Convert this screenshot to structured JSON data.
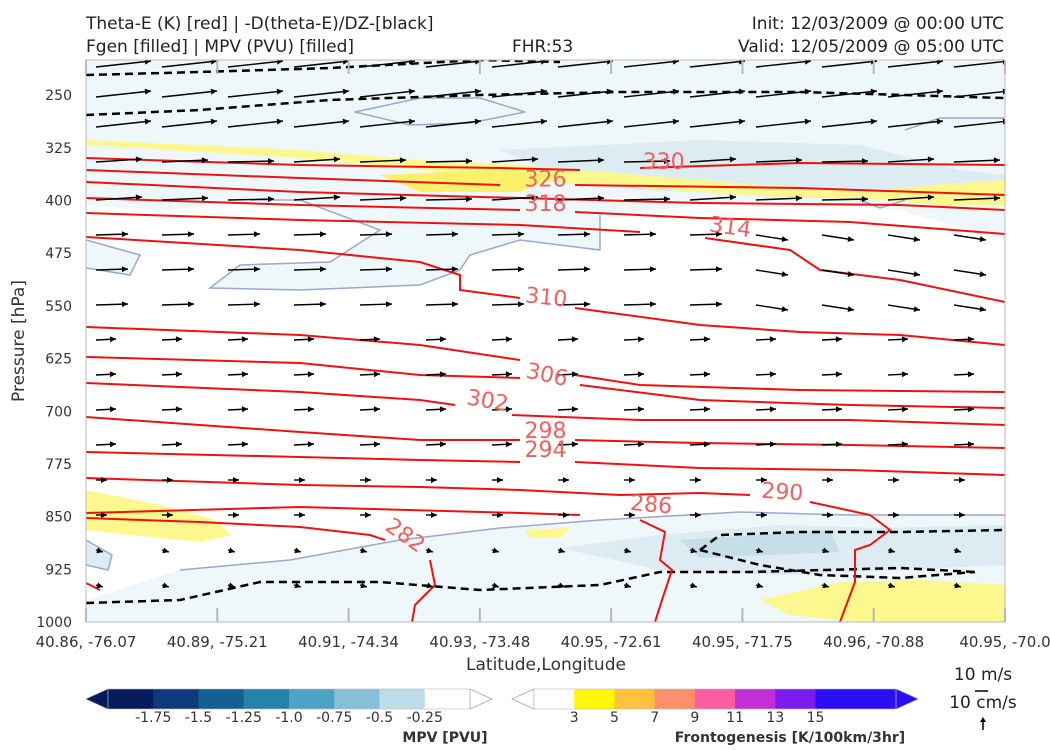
{
  "header": {
    "title_line1": "Theta-E (K) [red] | -D(theta-E)/DZ-[black]",
    "title_line2": "Fgen [filled] | MPV (PVU) [filled]",
    "fhr": "FHR:53",
    "init": "Init: 12/03/2009 @ 00:00 UTC",
    "valid": "Valid: 12/05/2009 @ 05:00 UTC"
  },
  "colors": {
    "theta_e": "#ee1111",
    "theta_e_label": "#f06060",
    "dthetae_dz": "#000000",
    "mpv_outline": "#9aa8cc",
    "wind": "#000000"
  },
  "chart_data": {
    "type": "cross-section",
    "xlabel": "Latitude,Longitude",
    "ylabel": "Pressure [hPa]",
    "ylim": [
      1000,
      200
    ],
    "x_ticks": [
      "40.86, -76.07",
      "40.89, -75.21",
      "40.91, -74.34",
      "40.93, -73.48",
      "40.95, -72.61",
      "40.95, -71.75",
      "40.96, -70.88",
      "40.95, -70.0"
    ],
    "y_ticks": [
      250,
      325,
      400,
      475,
      550,
      625,
      700,
      775,
      850,
      925,
      1000
    ],
    "theta_e_contour_labels": [
      {
        "value": "330",
        "x_index": 4.4,
        "p": 355
      },
      {
        "value": "326",
        "x_index": 3.5,
        "p": 380
      },
      {
        "value": "318",
        "x_index": 3.5,
        "p": 415
      },
      {
        "value": "314",
        "x_index": 4.9,
        "p": 448
      },
      {
        "value": "310",
        "x_index": 3.5,
        "p": 548
      },
      {
        "value": "306",
        "x_index": 3.5,
        "p": 658
      },
      {
        "value": "302",
        "x_index": 3.05,
        "p": 695
      },
      {
        "value": "298",
        "x_index": 3.5,
        "p": 738
      },
      {
        "value": "294",
        "x_index": 3.5,
        "p": 765
      },
      {
        "value": "290",
        "x_index": 5.3,
        "p": 825
      },
      {
        "value": "286",
        "x_index": 4.3,
        "p": 843
      },
      {
        "value": "282",
        "x_index": 2.4,
        "p": 885
      }
    ],
    "wind_reference": {
      "horizontal": "10 m/s",
      "vertical": "10 cm/s"
    }
  },
  "colorbars": {
    "mpv": {
      "label": "MPV [PVU]",
      "ticks": [
        "-1.75",
        "-1.5",
        "-1.25",
        "-1.0",
        "-0.75",
        "-0.5",
        "-0.25"
      ],
      "colors": [
        "#061a5e",
        "#0d3a7a",
        "#145f93",
        "#2383ab",
        "#4ea3c4",
        "#86c0d8",
        "#bcdce8",
        "#ffffff"
      ]
    },
    "fgen": {
      "label": "Frontogenesis [K/100km/3hr]",
      "ticks": [
        "3",
        "5",
        "7",
        "9",
        "11",
        "13",
        "15"
      ],
      "colors": [
        "#ffffff",
        "#fff60a",
        "#ffc23a",
        "#ff8e6c",
        "#ff5ca2",
        "#c42ed6",
        "#7a1cf0",
        "#2a0ff5",
        "#2a0ff5"
      ]
    }
  }
}
